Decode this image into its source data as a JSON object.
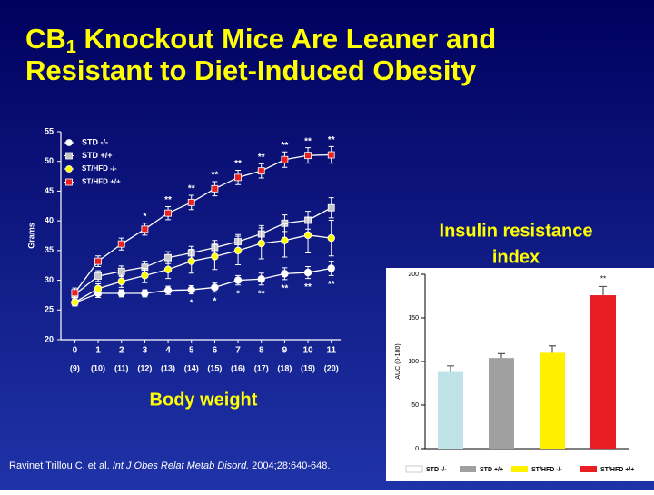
{
  "slide": {
    "title": {
      "main": "CB",
      "subscript": "1",
      "rest": " Knockout Mice Are Leaner and",
      "line2": "Resistant to Diet-Induced Obesity"
    },
    "citation": {
      "authors": "Ravinet Trillou C, et al. ",
      "journal": "Int J Obes Relat Metab Disord.",
      "details": " 2004;28:640-648."
    }
  },
  "chart_data": [
    {
      "type": "line",
      "title": "Body weight",
      "ylabel": "Grams",
      "x": [
        0,
        1,
        2,
        3,
        4,
        5,
        6,
        7,
        8,
        9,
        10,
        11
      ],
      "xlim": [
        -0.6,
        11.4
      ],
      "xticks": [
        0,
        1,
        2,
        3,
        4,
        5,
        6,
        7,
        8,
        9,
        10,
        11
      ],
      "n_labels": [
        "(9)",
        "(10)",
        "(11)",
        "(12)",
        "(13)",
        "(14)",
        "(15)",
        "(16)",
        "(17)",
        "(18)",
        "(19)",
        "(20)"
      ],
      "ylim": [
        20,
        55
      ],
      "yticks": [
        20,
        25,
        30,
        35,
        40,
        45,
        50,
        55
      ],
      "line_color": "#ffffff",
      "series": [
        {
          "name": "STD -/-",
          "color": "#ffffff",
          "marker": "circle",
          "values": [
            26.2,
            27.8,
            27.8,
            27.8,
            28.3,
            28.4,
            28.8,
            30,
            30.2,
            31.1,
            31.3,
            32
          ],
          "errors": [
            0.5,
            0.7,
            0.6,
            0.6,
            0.7,
            0.7,
            0.8,
            0.8,
            1,
            1,
            1,
            1.2
          ],
          "significance": [
            null,
            null,
            null,
            null,
            null,
            "*",
            "*",
            "*",
            "**",
            "**",
            "**",
            "**"
          ],
          "significance_side": "below"
        },
        {
          "name": "STD +/+",
          "color": "#c8c8c8",
          "marker": "square",
          "values": [
            27.6,
            30.7,
            31.5,
            32.2,
            33.8,
            34.6,
            35.5,
            36.5,
            37.8,
            39.6,
            40.1,
            42.2
          ],
          "errors": [
            0.8,
            0.9,
            0.9,
            1,
            1,
            1.1,
            1.2,
            1.2,
            1.4,
            1.4,
            1.5,
            1.7
          ]
        },
        {
          "name": "ST/HFD -/-",
          "color": "#ffff00",
          "marker": "circle",
          "values": [
            26.3,
            28.6,
            29.8,
            30.8,
            31.8,
            33.2,
            34,
            35,
            36.2,
            36.7,
            37.6,
            37.1
          ],
          "errors": [
            0.6,
            0.8,
            1,
            1.2,
            1.5,
            2,
            2.2,
            2.4,
            2.6,
            2.8,
            3,
            3
          ]
        },
        {
          "name": "ST/HFD +/+",
          "color": "#e82020",
          "marker": "square",
          "values": [
            27.9,
            33.2,
            36.1,
            38.6,
            41.3,
            43.1,
            45.4,
            47.3,
            48.4,
            50.3,
            51,
            51.1
          ],
          "errors": [
            0.8,
            0.9,
            1,
            1,
            1.1,
            1.2,
            1.2,
            1.2,
            1.2,
            1.3,
            1.3,
            1.4
          ],
          "significance": [
            null,
            null,
            null,
            "*",
            "**",
            "**",
            "**",
            "**",
            "**",
            "**",
            "**",
            "**"
          ],
          "significance_side": "above"
        }
      ]
    },
    {
      "type": "bar",
      "title": [
        "Insulin resistance",
        "index"
      ],
      "ylabel": "AUC (0-180)",
      "categories": [
        "STD -/-",
        "STD +/+",
        "ST/HFD -/-",
        "ST/HFD +/+"
      ],
      "values": [
        88,
        104,
        110,
        176
      ],
      "errors": [
        7,
        5,
        8,
        10
      ],
      "colors": [
        "#bfe3e8",
        "#a0a0a0",
        "#fff000",
        "#e81e25"
      ],
      "legend_colors": [
        "#ffffff",
        "#a0a0a0",
        "#fff000",
        "#e81e25"
      ],
      "significance": [
        null,
        null,
        null,
        "**"
      ],
      "ylim": [
        0,
        200
      ],
      "yticks": [
        0,
        50,
        100,
        150,
        200
      ]
    }
  ]
}
